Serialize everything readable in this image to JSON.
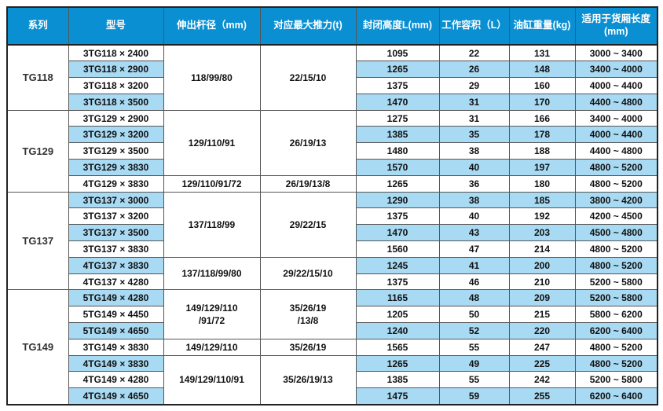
{
  "colors": {
    "header_blue": "#0a8fd2",
    "row_stripe_blue": "#a9daf3",
    "grid_border": "#555555",
    "outer_border": "#222222",
    "header_text": "#ffffff",
    "body_text": "#111111"
  },
  "table": {
    "columns": [
      {
        "key": "series",
        "label": "系列"
      },
      {
        "key": "model",
        "label": "型号"
      },
      {
        "key": "rod",
        "label": "伸出杆径（mm)"
      },
      {
        "key": "thrust",
        "label": "对应最大推力(t)"
      },
      {
        "key": "height",
        "label": "封闭高度L(mm)"
      },
      {
        "key": "volume",
        "label": "工作容积（L）"
      },
      {
        "key": "weight",
        "label": "油缸重量(kg)"
      },
      {
        "key": "range",
        "label": "适用于货厢长度\n(mm)"
      }
    ],
    "groups": [
      {
        "series": "TG118",
        "rows": [
          {
            "model": "3TG118 × 2400",
            "rod": "118/99/80",
            "rod_span": 4,
            "thrust": "22/15/10",
            "thrust_span": 4,
            "height": "1095",
            "volume": "22",
            "weight": "131",
            "range": "3000 ~ 3400"
          },
          {
            "model": "3TG118 × 2900",
            "height": "1265",
            "volume": "26",
            "weight": "148",
            "range": "3400 ~ 4000"
          },
          {
            "model": "3TG118 × 3200",
            "height": "1375",
            "volume": "29",
            "weight": "160",
            "range": "4000 ~ 4400"
          },
          {
            "model": "3TG118 × 3500",
            "height": "1470",
            "volume": "31",
            "weight": "170",
            "range": "4400 ~ 4800"
          }
        ]
      },
      {
        "series": "TG129",
        "rows": [
          {
            "model": "3TG129 × 2900",
            "rod": "129/110/91",
            "rod_span": 4,
            "thrust": "26/19/13",
            "thrust_span": 4,
            "height": "1275",
            "volume": "31",
            "weight": "166",
            "range": "3400 ~ 4000"
          },
          {
            "model": "3TG129 × 3200",
            "height": "1385",
            "volume": "35",
            "weight": "178",
            "range": "4000 ~ 4400"
          },
          {
            "model": "3TG129 × 3500",
            "height": "1480",
            "volume": "38",
            "weight": "188",
            "range": "4400 ~ 4800"
          },
          {
            "model": "3TG129 × 3830",
            "height": "1570",
            "volume": "40",
            "weight": "197",
            "range": "4800 ~ 5200"
          },
          {
            "model": "4TG129 × 3830",
            "rod": "129/110/91/72",
            "rod_span": 1,
            "thrust": "26/19/13/8",
            "thrust_span": 1,
            "height": "1265",
            "volume": "36",
            "weight": "180",
            "range": "4800 ~ 5200"
          }
        ]
      },
      {
        "series": "TG137",
        "rows": [
          {
            "model": "3TG137 × 3000",
            "rod": "137/118/99",
            "rod_span": 4,
            "thrust": "29/22/15",
            "thrust_span": 4,
            "height": "1290",
            "volume": "38",
            "weight": "185",
            "range": "3800 ~ 4200"
          },
          {
            "model": "3TG137 × 3200",
            "height": "1375",
            "volume": "40",
            "weight": "192",
            "range": "4200 ~ 4500"
          },
          {
            "model": "3TG137 × 3500",
            "height": "1470",
            "volume": "43",
            "weight": "203",
            "range": "4500 ~ 4800"
          },
          {
            "model": "3TG137 × 3830",
            "height": "1560",
            "volume": "47",
            "weight": "214",
            "range": "4800 ~ 5200"
          },
          {
            "model": "4TG137 × 3830",
            "rod": "137/118/99/80",
            "rod_span": 2,
            "thrust": "29/22/15/10",
            "thrust_span": 2,
            "height": "1245",
            "volume": "41",
            "weight": "200",
            "range": "4800 ~ 5200"
          },
          {
            "model": "4TG137 × 4280",
            "height": "1375",
            "volume": "46",
            "weight": "210",
            "range": "5200 ~ 5800"
          }
        ]
      },
      {
        "series": "TG149",
        "rows": [
          {
            "model": "5TG149 × 4280",
            "rod": "149/129/110\n/91/72",
            "rod_span": 3,
            "thrust": "35/26/19\n/13/8",
            "thrust_span": 3,
            "height": "1165",
            "volume": "48",
            "weight": "209",
            "range": "5200 ~ 5800"
          },
          {
            "model": "5TG149 × 4450",
            "height": "1205",
            "volume": "50",
            "weight": "215",
            "range": "5800 ~ 6200"
          },
          {
            "model": "5TG149 × 4650",
            "height": "1240",
            "volume": "52",
            "weight": "220",
            "range": "6200 ~ 6400"
          },
          {
            "model": "3TG149 × 3830",
            "rod": "149/129/110",
            "rod_span": 1,
            "thrust": "35/26/19",
            "thrust_span": 1,
            "height": "1565",
            "volume": "55",
            "weight": "247",
            "range": "4800 ~ 5200"
          },
          {
            "model": "4TG149 × 3830",
            "rod": "149/129/110/91",
            "rod_span": 3,
            "thrust": "35/26/19/13",
            "thrust_span": 3,
            "height": "1265",
            "volume": "49",
            "weight": "225",
            "range": "4800 ~ 5200"
          },
          {
            "model": "4TG149 × 4280",
            "height": "1385",
            "volume": "55",
            "weight": "242",
            "range": "5200 ~ 5800"
          },
          {
            "model": "4TG149 × 4650",
            "height": "1475",
            "volume": "59",
            "weight": "255",
            "range": "6200 ~ 6400"
          }
        ]
      }
    ]
  }
}
